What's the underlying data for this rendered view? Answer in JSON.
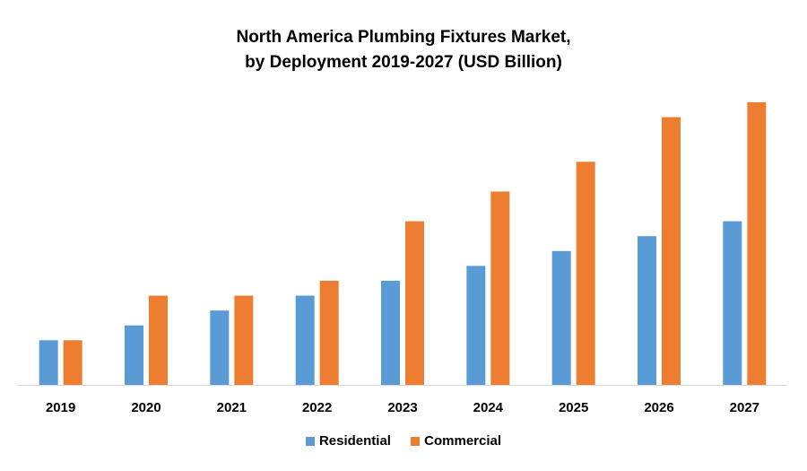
{
  "chart_data": {
    "type": "bar",
    "title_line1": "North America Plumbing Fixtures Market,",
    "title_line2": "by Deployment 2019-2027 (USD Billion)",
    "categories": [
      "2019",
      "2020",
      "2021",
      "2022",
      "2023",
      "2024",
      "2025",
      "2026",
      "2027"
    ],
    "series": [
      {
        "name": "Residential",
        "color": "#5b9bd5",
        "values": [
          3.0,
          4.0,
          5.0,
          6.0,
          7.0,
          8.0,
          9.0,
          10.0,
          11.0
        ]
      },
      {
        "name": "Commercial",
        "color": "#ed7d31",
        "values": [
          3.0,
          6.0,
          6.0,
          7.0,
          11.0,
          13.0,
          15.0,
          18.0,
          19.0
        ]
      }
    ],
    "ylim": [
      0,
      19
    ],
    "grid": false,
    "legend_position": "bottom"
  }
}
